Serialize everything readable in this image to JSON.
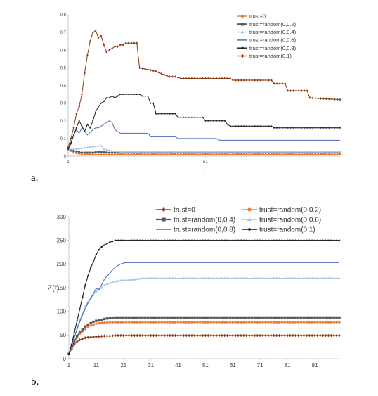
{
  "chart_data": [
    {
      "panel_label": "a.",
      "type": "line",
      "xlabel": "t",
      "ylabel": "",
      "xlim": [
        1,
        100
      ],
      "ylim": [
        0,
        0.8
      ],
      "x_ticks": [
        "1",
        "51"
      ],
      "y_ticks": [
        "0",
        "0.1",
        "0.2",
        "0.3",
        "0.4",
        "0.5",
        "0.6",
        "0.7",
        "0.8"
      ],
      "legend_position": "top-right",
      "series": [
        {
          "name": "trust=0",
          "color": "#ed7d31",
          "marker": "circle",
          "points": [
            [
              1,
              0.04
            ],
            [
              3,
              0.02
            ],
            [
              6,
              0.01
            ],
            [
              100,
              0.01
            ]
          ]
        },
        {
          "name": "trust=random(0,0.2)",
          "color": "#595959",
          "marker": "square",
          "points": [
            [
              1,
              0.04
            ],
            [
              3,
              0.03
            ],
            [
              6,
              0.02
            ],
            [
              10,
              0.02
            ],
            [
              12,
              0.025
            ],
            [
              16,
              0.02
            ],
            [
              100,
              0.02
            ]
          ]
        },
        {
          "name": "trust=random(0,0.4)",
          "color": "#a9c4e6",
          "marker": "triangle",
          "points": [
            [
              1,
              0.04
            ],
            [
              4,
              0.04
            ],
            [
              8,
              0.05
            ],
            [
              11,
              0.055
            ],
            [
              13,
              0.06
            ],
            [
              14,
              0.04
            ],
            [
              17,
              0.03
            ],
            [
              20,
              0.025
            ],
            [
              100,
              0.025
            ]
          ]
        },
        {
          "name": "trust=random(0,0.6)",
          "color": "#4a6ab9",
          "marker": "none",
          "points": [
            [
              1,
              0.04
            ],
            [
              3,
              0.12
            ],
            [
              4,
              0.15
            ],
            [
              5,
              0.13
            ],
            [
              6,
              0.16
            ],
            [
              7,
              0.14
            ],
            [
              8,
              0.12
            ],
            [
              10,
              0.15
            ],
            [
              11,
              0.16
            ],
            [
              12,
              0.16
            ],
            [
              14,
              0.18
            ],
            [
              15,
              0.19
            ],
            [
              16,
              0.2
            ],
            [
              17,
              0.19
            ],
            [
              18,
              0.15
            ],
            [
              19,
              0.14
            ],
            [
              20,
              0.13
            ],
            [
              25,
              0.13
            ],
            [
              30,
              0.13
            ],
            [
              31,
              0.11
            ],
            [
              40,
              0.11
            ],
            [
              41,
              0.1
            ],
            [
              55,
              0.1
            ],
            [
              56,
              0.09
            ],
            [
              100,
              0.09
            ]
          ]
        },
        {
          "name": "trust=random(0,0.8)",
          "color": "#1a1a1a",
          "marker": "dot",
          "points": [
            [
              1,
              0.04
            ],
            [
              2,
              0.07
            ],
            [
              3,
              0.12
            ],
            [
              4,
              0.16
            ],
            [
              5,
              0.2
            ],
            [
              6,
              0.17
            ],
            [
              7,
              0.14
            ],
            [
              8,
              0.18
            ],
            [
              9,
              0.16
            ],
            [
              10,
              0.2
            ],
            [
              11,
              0.25
            ],
            [
              12,
              0.28
            ],
            [
              13,
              0.3
            ],
            [
              14,
              0.31
            ],
            [
              15,
              0.33
            ],
            [
              16,
              0.33
            ],
            [
              17,
              0.34
            ],
            [
              18,
              0.33
            ],
            [
              19,
              0.34
            ],
            [
              20,
              0.35
            ],
            [
              27,
              0.35
            ],
            [
              28,
              0.34
            ],
            [
              30,
              0.34
            ],
            [
              31,
              0.3
            ],
            [
              32,
              0.3
            ],
            [
              33,
              0.24
            ],
            [
              40,
              0.24
            ],
            [
              41,
              0.22
            ],
            [
              50,
              0.22
            ],
            [
              51,
              0.2
            ],
            [
              58,
              0.2
            ],
            [
              59,
              0.18
            ],
            [
              60,
              0.17
            ],
            [
              75,
              0.17
            ],
            [
              76,
              0.16
            ],
            [
              100,
              0.16
            ]
          ]
        },
        {
          "name": "trust=random(0,1)",
          "color": "#8b3a12",
          "marker": "diamond",
          "points": [
            [
              1,
              0.05
            ],
            [
              2,
              0.1
            ],
            [
              3,
              0.16
            ],
            [
              4,
              0.24
            ],
            [
              5,
              0.28
            ],
            [
              6,
              0.35
            ],
            [
              7,
              0.47
            ],
            [
              8,
              0.57
            ],
            [
              9,
              0.65
            ],
            [
              10,
              0.7
            ],
            [
              11,
              0.71
            ],
            [
              12,
              0.67
            ],
            [
              13,
              0.68
            ],
            [
              14,
              0.63
            ],
            [
              15,
              0.59
            ],
            [
              16,
              0.6
            ],
            [
              17,
              0.61
            ],
            [
              18,
              0.62
            ],
            [
              19,
              0.62
            ],
            [
              20,
              0.63
            ],
            [
              21,
              0.63
            ],
            [
              22,
              0.64
            ],
            [
              23,
              0.64
            ],
            [
              24,
              0.64
            ],
            [
              25,
              0.64
            ],
            [
              26,
              0.64
            ],
            [
              27,
              0.5
            ],
            [
              30,
              0.49
            ],
            [
              33,
              0.48
            ],
            [
              36,
              0.46
            ],
            [
              38,
              0.45
            ],
            [
              40,
              0.45
            ],
            [
              42,
              0.44
            ],
            [
              60,
              0.44
            ],
            [
              61,
              0.43
            ],
            [
              75,
              0.43
            ],
            [
              76,
              0.41
            ],
            [
              80,
              0.41
            ],
            [
              81,
              0.37
            ],
            [
              88,
              0.37
            ],
            [
              89,
              0.33
            ],
            [
              100,
              0.32
            ]
          ]
        }
      ]
    },
    {
      "panel_label": "b.",
      "type": "line",
      "xlabel": "t",
      "ylabel": "Z(t)",
      "xlim": [
        1,
        100
      ],
      "ylim": [
        0,
        300
      ],
      "x_ticks": [
        "1",
        "11",
        "21",
        "31",
        "41",
        "51",
        "61",
        "71",
        "81",
        "91"
      ],
      "y_ticks": [
        "0",
        "50",
        "100",
        "150",
        "200",
        "250",
        "300"
      ],
      "legend_position": "top",
      "series": [
        {
          "name": "trust=0",
          "color": "#8b3a12",
          "marker": "diamond",
          "points": [
            [
              1,
              10
            ],
            [
              2,
              20
            ],
            [
              3,
              30
            ],
            [
              4,
              36
            ],
            [
              5,
              40
            ],
            [
              6,
              42
            ],
            [
              7,
              44
            ],
            [
              8,
              45
            ],
            [
              10,
              46
            ],
            [
              12,
              47
            ],
            [
              14,
              48
            ],
            [
              16,
              48
            ],
            [
              18,
              49
            ],
            [
              100,
              49
            ]
          ]
        },
        {
          "name": "trust=random(0,0.2)",
          "color": "#ed7d31",
          "marker": "circle",
          "points": [
            [
              1,
              10
            ],
            [
              2,
              22
            ],
            [
              3,
              35
            ],
            [
              4,
              45
            ],
            [
              5,
              53
            ],
            [
              6,
              58
            ],
            [
              7,
              63
            ],
            [
              8,
              67
            ],
            [
              9,
              70
            ],
            [
              10,
              72
            ],
            [
              11,
              74
            ],
            [
              12,
              75
            ],
            [
              14,
              76
            ],
            [
              16,
              77
            ],
            [
              100,
              77
            ]
          ]
        },
        {
          "name": "trust=random(0,0.4)",
          "color": "#595959",
          "marker": "square",
          "points": [
            [
              1,
              10
            ],
            [
              2,
              23
            ],
            [
              3,
              37
            ],
            [
              4,
              48
            ],
            [
              5,
              56
            ],
            [
              6,
              62
            ],
            [
              7,
              68
            ],
            [
              8,
              72
            ],
            [
              9,
              75
            ],
            [
              10,
              78
            ],
            [
              11,
              80
            ],
            [
              12,
              81
            ],
            [
              13,
              82
            ],
            [
              14,
              84
            ],
            [
              15,
              85
            ],
            [
              16,
              86
            ],
            [
              18,
              87
            ],
            [
              100,
              87
            ]
          ]
        },
        {
          "name": "trust=random(0,0.6)",
          "color": "#a9c4e6",
          "marker": "triangle",
          "points": [
            [
              1,
              10
            ],
            [
              2,
              25
            ],
            [
              3,
              45
            ],
            [
              4,
              65
            ],
            [
              5,
              82
            ],
            [
              6,
              97
            ],
            [
              7,
              110
            ],
            [
              8,
              120
            ],
            [
              9,
              128
            ],
            [
              10,
              135
            ],
            [
              11,
              142
            ],
            [
              12,
              146
            ],
            [
              13,
              150
            ],
            [
              14,
              155
            ],
            [
              15,
              158
            ],
            [
              16,
              160
            ],
            [
              18,
              163
            ],
            [
              20,
              165
            ],
            [
              22,
              166
            ],
            [
              24,
              167
            ],
            [
              26,
              168
            ],
            [
              28,
              170
            ],
            [
              100,
              170
            ]
          ]
        },
        {
          "name": "trust=random(0,0.8)",
          "color": "#4a6ab9",
          "marker": "none",
          "points": [
            [
              1,
              10
            ],
            [
              2,
              27
            ],
            [
              3,
              45
            ],
            [
              4,
              62
            ],
            [
              5,
              78
            ],
            [
              6,
              92
            ],
            [
              7,
              105
            ],
            [
              8,
              118
            ],
            [
              9,
              128
            ],
            [
              10,
              138
            ],
            [
              11,
              148
            ],
            [
              12,
              146
            ],
            [
              13,
              156
            ],
            [
              14,
              168
            ],
            [
              15,
              175
            ],
            [
              16,
              180
            ],
            [
              17,
              188
            ],
            [
              18,
              193
            ],
            [
              19,
              197
            ],
            [
              20,
              200
            ],
            [
              21,
              202
            ],
            [
              22,
              203
            ],
            [
              100,
              203
            ]
          ]
        },
        {
          "name": "trust=random(0,1)",
          "color": "#1a1a1a",
          "marker": "dot",
          "points": [
            [
              1,
              10
            ],
            [
              2,
              30
            ],
            [
              3,
              55
            ],
            [
              4,
              80
            ],
            [
              5,
              105
            ],
            [
              6,
              130
            ],
            [
              7,
              155
            ],
            [
              8,
              175
            ],
            [
              9,
              192
            ],
            [
              10,
              205
            ],
            [
              11,
              220
            ],
            [
              12,
              230
            ],
            [
              13,
              236
            ],
            [
              14,
              240
            ],
            [
              15,
              243
            ],
            [
              16,
              246
            ],
            [
              17,
              248
            ],
            [
              18,
              250
            ],
            [
              100,
              250
            ]
          ]
        }
      ]
    }
  ]
}
